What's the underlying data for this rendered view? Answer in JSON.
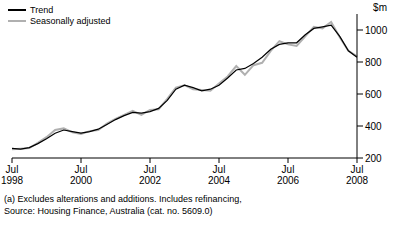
{
  "chart_data": {
    "type": "line",
    "y_label": "$m",
    "notes": [
      "(a) Excludes alterations and additions. Includes refinancing,",
      "Source: Housing Finance, Australia (cat. no. 5609.0)"
    ],
    "legend": "upper left",
    "grid": false,
    "categories": [
      "Jul 1998",
      null,
      null,
      null,
      null,
      null,
      null,
      null,
      "Jul 2000",
      null,
      null,
      null,
      null,
      null,
      null,
      null,
      "Jul 2002",
      null,
      null,
      null,
      null,
      null,
      null,
      null,
      "Jul 2004",
      null,
      null,
      null,
      null,
      null,
      null,
      null,
      "Jul 2006",
      null,
      null,
      null,
      null,
      null,
      null,
      null,
      "Jul 2008"
    ],
    "ylim": [
      200,
      1100
    ],
    "yticks": [
      200,
      400,
      600,
      800,
      1000
    ],
    "series": [
      {
        "name": "Trend",
        "color": "#000000",
        "values": [
          260,
          255,
          265,
          290,
          320,
          355,
          375,
          365,
          355,
          365,
          380,
          410,
          440,
          465,
          485,
          480,
          490,
          510,
          560,
          630,
          655,
          640,
          620,
          630,
          655,
          700,
          750,
          760,
          790,
          830,
          880,
          910,
          920,
          920,
          970,
          1010,
          1020,
          1030,
          960,
          870,
          830
        ]
      },
      {
        "name": "Seasonally adjusted",
        "color": "#b0b0b0",
        "values": [
          255,
          258,
          262,
          295,
          330,
          375,
          385,
          360,
          350,
          368,
          375,
          415,
          445,
          470,
          495,
          470,
          500,
          505,
          570,
          640,
          655,
          630,
          625,
          620,
          665,
          710,
          775,
          720,
          780,
          795,
          870,
          930,
          910,
          900,
          960,
          1020,
          1010,
          1050,
          955,
          870,
          835
        ]
      }
    ]
  }
}
